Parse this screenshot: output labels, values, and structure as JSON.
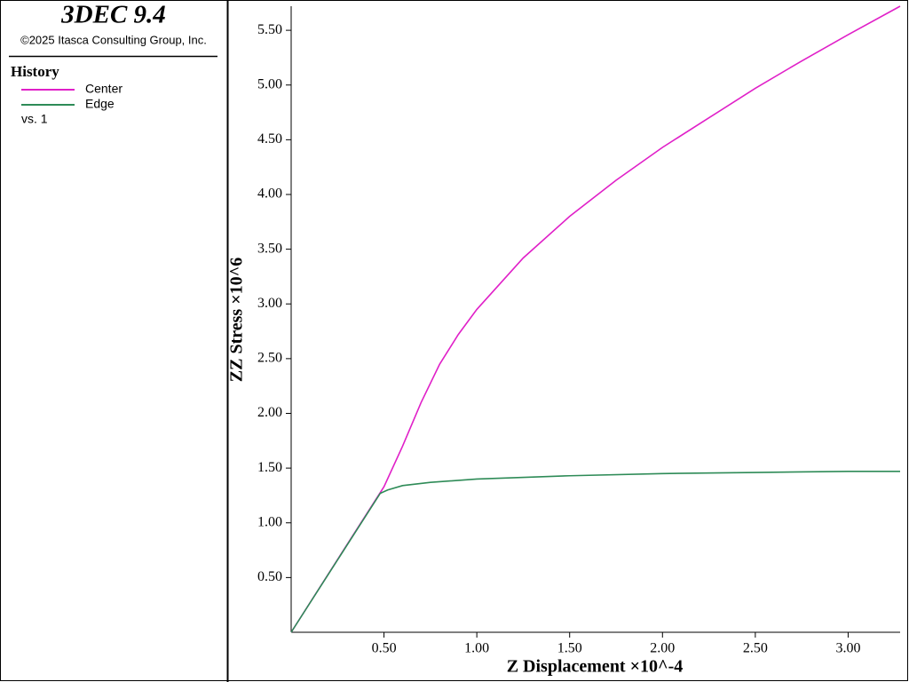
{
  "header": {
    "title": "3DEC 9.4",
    "copyright": "©2025 Itasca Consulting Group, Inc.",
    "legend_title": "History",
    "vs": "vs. 1"
  },
  "chart_data": {
    "type": "line",
    "xlabel": "Z Displacement ×10^-4",
    "ylabel": "ZZ Stress ×10^6",
    "xlim": [
      0,
      3.28
    ],
    "ylim": [
      0,
      5.72
    ],
    "xticks": [
      {
        "value": 0.5,
        "label": "0.50"
      },
      {
        "value": 1.0,
        "label": "1.00"
      },
      {
        "value": 1.5,
        "label": "1.50"
      },
      {
        "value": 2.0,
        "label": "2.00"
      },
      {
        "value": 2.5,
        "label": "2.50"
      },
      {
        "value": 3.0,
        "label": "3.00"
      }
    ],
    "yticks": [
      {
        "value": 0.5,
        "label": "0.50"
      },
      {
        "value": 1.0,
        "label": "1.00"
      },
      {
        "value": 1.5,
        "label": "1.50"
      },
      {
        "value": 2.0,
        "label": "2.00"
      },
      {
        "value": 2.5,
        "label": "2.50"
      },
      {
        "value": 3.0,
        "label": "3.00"
      },
      {
        "value": 3.5,
        "label": "3.50"
      },
      {
        "value": 4.0,
        "label": "4.00"
      },
      {
        "value": 4.5,
        "label": "4.50"
      },
      {
        "value": 5.0,
        "label": "5.00"
      },
      {
        "value": 5.5,
        "label": "5.50"
      }
    ],
    "series": [
      {
        "name": "Center",
        "color": "#e020c8",
        "x": [
          0,
          0.5,
          0.6,
          0.7,
          0.8,
          0.9,
          1.0,
          1.25,
          1.5,
          1.75,
          2.0,
          2.25,
          2.5,
          2.75,
          3.0,
          3.28
        ],
        "values": [
          0,
          1.33,
          1.7,
          2.1,
          2.45,
          2.72,
          2.95,
          3.42,
          3.8,
          4.13,
          4.43,
          4.7,
          4.97,
          5.22,
          5.46,
          5.72
        ]
      },
      {
        "name": "Edge",
        "color": "#2e8b57",
        "x": [
          0,
          0.48,
          0.52,
          0.6,
          0.75,
          1.0,
          1.5,
          2.0,
          2.5,
          3.0,
          3.28
        ],
        "values": [
          0,
          1.27,
          1.3,
          1.34,
          1.37,
          1.4,
          1.43,
          1.45,
          1.46,
          1.47,
          1.47
        ]
      }
    ]
  }
}
